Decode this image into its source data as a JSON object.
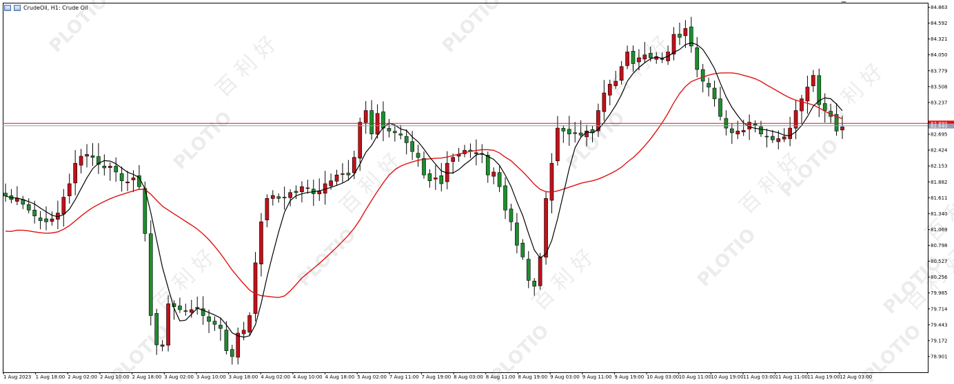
{
  "window": {
    "title": "CrudeOil, H1:  Crude Oil"
  },
  "watermark": {
    "brand": "PLOTIO",
    "chinese": "百 利 好"
  },
  "colors": {
    "background": "#ffffff",
    "bull_candle": "#c0121a",
    "bear_candle": "#1e8e2e",
    "wick": "#000000",
    "ma_fast": "#000000",
    "ma_slow": "#e01010",
    "hline_red": "#e01010",
    "hline_grey": "#9a9ab0",
    "price_tag_bg": "#e01010",
    "grid": "none"
  },
  "chart_data": {
    "type": "candlestick",
    "timeframe": "H1",
    "symbol": "CrudeOil",
    "description": "Crude Oil",
    "y_ticks": [
      "84.863",
      "84.592",
      "84.321",
      "84.050",
      "83.779",
      "83.508",
      "83.237",
      "82.695",
      "82.424",
      "82.153",
      "81.882",
      "81.611",
      "81.340",
      "81.069",
      "80.798",
      "80.527",
      "80.256",
      "79.985",
      "79.714",
      "79.443",
      "79.172",
      "78.901"
    ],
    "ylim": [
      78.82,
      84.93
    ],
    "x_ticks": [
      "1 Aug 2023",
      "1 Aug 18:00",
      "2 Aug 02:00",
      "2 Aug 10:00",
      "2 Aug 18:00",
      "3 Aug 02:00",
      "3 Aug 10:00",
      "3 Aug 18:00",
      "4 Aug 02:00",
      "4 Aug 10:00",
      "4 Aug 18:00",
      "5 Aug 02:00",
      "7 Aug 11:00",
      "7 Aug 19:00",
      "8 Aug 03:00",
      "8 Aug 11:00",
      "8 Aug 19:00",
      "9 Aug 03:00",
      "9 Aug 11:00",
      "9 Aug 19:00",
      "10 Aug 03:00",
      "10 Aug 11:00",
      "10 Aug 19:00",
      "11 Aug 03:00",
      "11 Aug 11:00",
      "11 Aug 19:00",
      "12 Aug 03:00"
    ],
    "price_labels": {
      "red": "82.880",
      "grey": "82.840"
    },
    "hlines": [
      {
        "value": 82.88,
        "color": "red"
      },
      {
        "value": 82.84,
        "color": "grey"
      }
    ],
    "close_series": [
      81.64,
      81.58,
      81.6,
      81.5,
      81.4,
      81.3,
      81.22,
      81.2,
      81.25,
      81.35,
      81.62,
      81.85,
      82.2,
      82.32,
      82.35,
      82.3,
      82.18,
      82.12,
      82.15,
      82.05,
      81.9,
      81.88,
      81.95,
      81.8,
      81.0,
      79.6,
      79.1,
      79.1,
      79.8,
      79.75,
      79.7,
      79.68,
      79.7,
      79.72,
      79.6,
      79.5,
      79.45,
      79.38,
      79.0,
      78.9,
      79.3,
      79.35,
      79.6,
      80.5,
      81.2,
      81.6,
      81.65,
      81.6,
      81.62,
      81.7,
      81.7,
      81.8,
      81.78,
      81.68,
      81.72,
      81.85,
      81.9,
      82.0,
      82.02,
      82.0,
      82.3,
      82.9,
      83.1,
      82.7,
      83.05,
      82.8,
      82.75,
      82.72,
      82.68,
      82.55,
      82.4,
      82.3,
      82.0,
      81.9,
      81.95,
      81.85,
      82.2,
      82.3,
      82.35,
      82.42,
      82.4,
      82.38,
      82.35,
      82.0,
      82.05,
      81.8,
      81.4,
      81.2,
      80.8,
      80.6,
      80.2,
      80.1,
      80.6,
      81.6,
      82.2,
      82.8,
      82.75,
      82.7,
      82.72,
      82.68,
      82.75,
      82.72,
      83.1,
      83.4,
      83.55,
      83.6,
      83.85,
      84.1,
      83.9,
      84.0,
      84.05,
      84.0,
      84.02,
      83.98,
      84.1,
      84.4,
      84.35,
      84.5,
      84.2,
      83.8,
      83.6,
      83.5,
      83.3,
      83.0,
      82.8,
      82.72,
      82.75,
      82.76,
      82.9,
      82.85,
      82.7,
      82.65,
      82.6,
      82.62,
      82.65,
      82.8,
      83.1,
      83.3,
      83.5,
      83.7,
      83.2,
      83.1,
      83.0,
      82.75,
      82.82
    ]
  }
}
